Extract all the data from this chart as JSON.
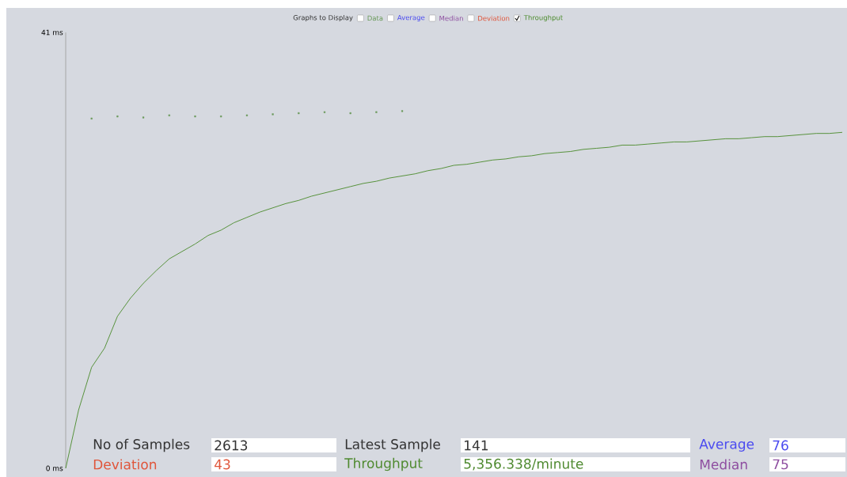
{
  "chart_data": {
    "type": "line",
    "legend_title": "Graphs to Display",
    "legend": "top",
    "tick_labels": "y",
    "categories": [
      null,
      null,
      null,
      null,
      null,
      null,
      null,
      null,
      null,
      null,
      null,
      null,
      null,
      null,
      null,
      null,
      null,
      null,
      null,
      null,
      null,
      null,
      null,
      null,
      null,
      null,
      null,
      null,
      null,
      null,
      null,
      null,
      null,
      null,
      null,
      null,
      null,
      null,
      null,
      null,
      null,
      null,
      null,
      null,
      null,
      null,
      null,
      null,
      null,
      null,
      null,
      null,
      null,
      null,
      null,
      null,
      null,
      null,
      null,
      null,
      null
    ],
    "ylim": [
      0,
      41
    ],
    "yticks": [
      {
        "value": 0,
        "label": "0 ms"
      },
      {
        "value": 41,
        "label": "41 ms"
      }
    ],
    "series": [
      {
        "name": "Data",
        "type": "scatter",
        "color": "#6a9a5a",
        "values": [
          null,
          null,
          32.9,
          null,
          33.1,
          null,
          33.0,
          null,
          33.2,
          null,
          33.1,
          null,
          33.1,
          null,
          33.2,
          null,
          33.3,
          null,
          33.4,
          null,
          33.5,
          null,
          33.4,
          null,
          33.5,
          null,
          33.6,
          null,
          null,
          null,
          null,
          null,
          null,
          null,
          null,
          null,
          null,
          null,
          null,
          null,
          null,
          null,
          null,
          null,
          null,
          null,
          null,
          null,
          null,
          null,
          null,
          null,
          null,
          null,
          null,
          null,
          null,
          null,
          null,
          null,
          null
        ]
      },
      {
        "name": "Throughput",
        "color": "#4a8a2a",
        "values": [
          0,
          5.5,
          9.5,
          11.3,
          14.3,
          16.0,
          17.4,
          18.6,
          19.7,
          20.4,
          21.1,
          21.9,
          22.4,
          23.1,
          23.6,
          24.1,
          24.5,
          24.9,
          25.2,
          25.6,
          25.9,
          26.2,
          26.5,
          26.8,
          27.0,
          27.3,
          27.5,
          27.7,
          28.0,
          28.2,
          28.5,
          28.6,
          28.8,
          29.0,
          29.1,
          29.3,
          29.4,
          29.6,
          29.7,
          29.8,
          30.0,
          30.1,
          30.2,
          30.4,
          30.4,
          30.5,
          30.6,
          30.7,
          30.7,
          30.8,
          30.9,
          31.0,
          31.0,
          31.1,
          31.2,
          31.2,
          31.3,
          31.4,
          31.5,
          31.5,
          31.6
        ]
      }
    ],
    "annotations": [
      "Average",
      "Median",
      "Deviation",
      "No of Samples",
      "2613",
      "Latest Sample",
      "141",
      "Average",
      "76",
      "Deviation",
      "43",
      "Throughput",
      "5,356.338/minute",
      "Median",
      "75"
    ]
  }
}
